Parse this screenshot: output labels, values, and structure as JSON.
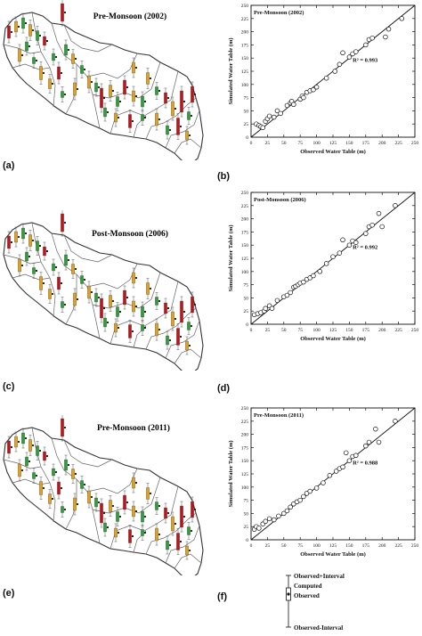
{
  "panel_labels": {
    "a": "(a)",
    "b": "(b)",
    "c": "(c)",
    "d": "(d)",
    "e": "(e)",
    "f": "(f)"
  },
  "maps": [
    {
      "title": "Pre-Monsoon (2002)"
    },
    {
      "title": "Post-Monsoon (2006)"
    },
    {
      "title": "Pre-Monsoon (2011)"
    }
  ],
  "legend": {
    "observed_plus_interval": "Observed+Interval",
    "computed": "Computed",
    "observed": "Observed",
    "observed_minus_interval": "Observed-Interval"
  },
  "colors": {
    "observed": "#2e9e3a",
    "computed": "#111111",
    "bar_red": "#c0141c",
    "bar_orange": "#e0a020",
    "ink": "#111111"
  },
  "chart_data": [
    {
      "type": "scatter",
      "title": "Pre-Monsoon (2002)",
      "xlabel": "Observed Water Table (m)",
      "ylabel": "Simulated Water Table (m)",
      "xlim": [
        0,
        250
      ],
      "ylim": [
        0,
        250
      ],
      "xticks": [
        0,
        25,
        50,
        75,
        100,
        125,
        150,
        175,
        200,
        225,
        250
      ],
      "yticks": [
        0,
        25,
        50,
        75,
        100,
        125,
        150,
        175,
        200,
        225,
        250
      ],
      "r2_label": "R² = 0.993",
      "fit_line": [
        [
          0,
          0
        ],
        [
          250,
          250
        ]
      ],
      "points": [
        [
          8,
          25
        ],
        [
          12,
          22
        ],
        [
          15,
          20
        ],
        [
          18,
          18
        ],
        [
          22,
          30
        ],
        [
          25,
          35
        ],
        [
          28,
          40
        ],
        [
          35,
          38
        ],
        [
          40,
          50
        ],
        [
          45,
          45
        ],
        [
          55,
          60
        ],
        [
          60,
          65
        ],
        [
          62,
          68
        ],
        [
          65,
          62
        ],
        [
          75,
          72
        ],
        [
          78,
          78
        ],
        [
          80,
          75
        ],
        [
          85,
          85
        ],
        [
          90,
          88
        ],
        [
          95,
          90
        ],
        [
          100,
          95
        ],
        [
          115,
          112
        ],
        [
          128,
          125
        ],
        [
          135,
          138
        ],
        [
          140,
          160
        ],
        [
          150,
          152
        ],
        [
          155,
          158
        ],
        [
          160,
          162
        ],
        [
          175,
          175
        ],
        [
          180,
          185
        ],
        [
          185,
          188
        ],
        [
          205,
          190
        ],
        [
          210,
          205
        ],
        [
          230,
          225
        ]
      ]
    },
    {
      "type": "scatter",
      "title": "Post-Monsoon (2006)",
      "xlabel": "Observed Water Table (m)",
      "ylabel": "Simulated Water Table (m)",
      "xlim": [
        0,
        250
      ],
      "ylim": [
        0,
        250
      ],
      "xticks": [
        0,
        25,
        50,
        75,
        100,
        125,
        150,
        175,
        200,
        225,
        250
      ],
      "yticks": [
        0,
        25,
        50,
        75,
        100,
        125,
        150,
        175,
        200,
        225,
        250
      ],
      "r2_label": "R² = 0.992",
      "fit_line": [
        [
          0,
          0
        ],
        [
          250,
          250
        ]
      ],
      "points": [
        [
          5,
          18
        ],
        [
          10,
          20
        ],
        [
          15,
          22
        ],
        [
          20,
          25
        ],
        [
          22,
          30
        ],
        [
          28,
          35
        ],
        [
          32,
          30
        ],
        [
          40,
          45
        ],
        [
          50,
          52
        ],
        [
          55,
          55
        ],
        [
          60,
          60
        ],
        [
          65,
          70
        ],
        [
          68,
          72
        ],
        [
          72,
          75
        ],
        [
          75,
          78
        ],
        [
          80,
          80
        ],
        [
          85,
          85
        ],
        [
          90,
          88
        ],
        [
          95,
          92
        ],
        [
          105,
          100
        ],
        [
          115,
          115
        ],
        [
          125,
          128
        ],
        [
          135,
          135
        ],
        [
          140,
          160
        ],
        [
          150,
          150
        ],
        [
          155,
          158
        ],
        [
          160,
          155
        ],
        [
          175,
          172
        ],
        [
          180,
          185
        ],
        [
          185,
          188
        ],
        [
          195,
          210
        ],
        [
          200,
          185
        ],
        [
          220,
          225
        ]
      ]
    },
    {
      "type": "scatter",
      "title": "Pre-Monsoon (2011)",
      "xlabel": "Observed Water Table (m)",
      "ylabel": "Simulated Water Table (m)",
      "xlim": [
        0,
        250
      ],
      "ylim": [
        0,
        250
      ],
      "xticks": [
        0,
        25,
        50,
        75,
        100,
        125,
        150,
        175,
        200,
        225,
        250
      ],
      "yticks": [
        0,
        25,
        50,
        75,
        100,
        125,
        150,
        175,
        200,
        225,
        250
      ],
      "r2_label": "R² = 0.988",
      "fit_line": [
        [
          0,
          0
        ],
        [
          250,
          250
        ]
      ],
      "points": [
        [
          5,
          20
        ],
        [
          8,
          25
        ],
        [
          12,
          22
        ],
        [
          18,
          30
        ],
        [
          22,
          35
        ],
        [
          28,
          40
        ],
        [
          35,
          38
        ],
        [
          42,
          45
        ],
        [
          50,
          50
        ],
        [
          55,
          55
        ],
        [
          60,
          62
        ],
        [
          65,
          68
        ],
        [
          70,
          72
        ],
        [
          75,
          75
        ],
        [
          80,
          82
        ],
        [
          85,
          88
        ],
        [
          90,
          92
        ],
        [
          100,
          98
        ],
        [
          110,
          108
        ],
        [
          120,
          122
        ],
        [
          130,
          130
        ],
        [
          135,
          135
        ],
        [
          140,
          138
        ],
        [
          145,
          165
        ],
        [
          150,
          150
        ],
        [
          155,
          158
        ],
        [
          160,
          160
        ],
        [
          175,
          178
        ],
        [
          180,
          185
        ],
        [
          190,
          210
        ],
        [
          195,
          185
        ],
        [
          220,
          225
        ]
      ]
    }
  ]
}
